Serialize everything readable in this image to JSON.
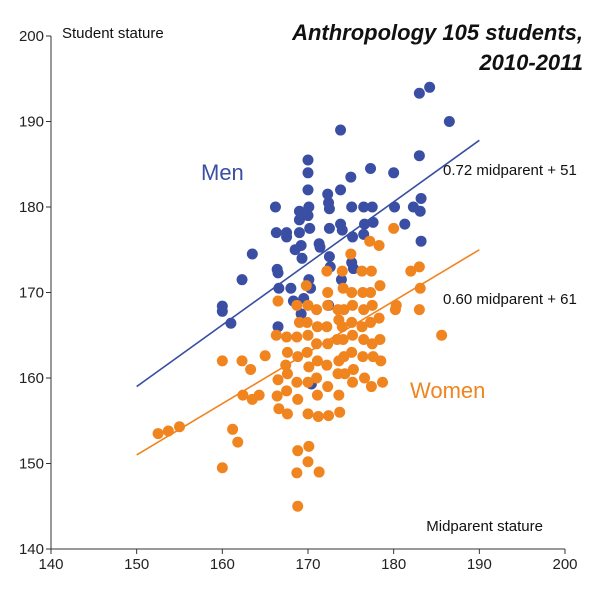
{
  "chart_data": {
    "type": "scatter",
    "title_line1": "Anthropology 105 students,",
    "title_line2": "2010-2011",
    "xlabel": "Midparent stature",
    "ylabel": "Student stature",
    "xlim": [
      140,
      200
    ],
    "ylim": [
      140,
      200
    ],
    "x_ticks": [
      140,
      150,
      160,
      170,
      180,
      190,
      200
    ],
    "y_ticks": [
      140,
      150,
      160,
      170,
      180,
      190,
      200
    ],
    "grid": false,
    "series": [
      {
        "name": "Men",
        "color": "#3a4fa3",
        "fit_label": "0.72 midparent + 51",
        "fit": {
          "slope": 0.72,
          "intercept": 51,
          "x_range": [
            150,
            190
          ]
        },
        "points": [
          [
            160,
            168.4
          ],
          [
            160,
            167.8
          ],
          [
            161,
            166.4
          ],
          [
            162.3,
            171.5
          ],
          [
            163.5,
            174.5
          ],
          [
            166.2,
            180
          ],
          [
            166.3,
            177
          ],
          [
            166.4,
            172.7
          ],
          [
            166.5,
            172.3
          ],
          [
            166.6,
            170.5
          ],
          [
            166.5,
            166
          ],
          [
            167.5,
            177
          ],
          [
            167.5,
            176.5
          ],
          [
            168,
            170.5
          ],
          [
            168.3,
            169
          ],
          [
            168.5,
            175
          ],
          [
            169,
            179.5
          ],
          [
            169,
            178.5
          ],
          [
            169,
            177
          ],
          [
            169.2,
            175.5
          ],
          [
            169.5,
            169.3
          ],
          [
            169.2,
            167.5
          ],
          [
            169.3,
            174
          ],
          [
            170,
            185.5
          ],
          [
            170,
            184
          ],
          [
            170,
            182
          ],
          [
            170.1,
            180
          ],
          [
            170,
            179
          ],
          [
            170.2,
            177.5
          ],
          [
            170.1,
            171.5
          ],
          [
            170.3,
            170.5
          ],
          [
            170.4,
            159.3
          ],
          [
            171.3,
            175.7
          ],
          [
            171.4,
            175.3
          ],
          [
            172.3,
            181.5
          ],
          [
            172.4,
            180.5
          ],
          [
            172.5,
            179.8
          ],
          [
            172.5,
            177.5
          ],
          [
            172.5,
            174.2
          ],
          [
            172.6,
            173
          ],
          [
            172.4,
            168.5
          ],
          [
            173.8,
            189
          ],
          [
            173.8,
            182
          ],
          [
            173.8,
            178
          ],
          [
            174,
            177.3
          ],
          [
            173.9,
            171.5
          ],
          [
            175,
            183.5
          ],
          [
            175.1,
            180
          ],
          [
            175.2,
            176.5
          ],
          [
            175.1,
            173.5
          ],
          [
            175.3,
            172.8
          ],
          [
            176.5,
            180
          ],
          [
            176.6,
            178
          ],
          [
            176.5,
            176.8
          ],
          [
            177.3,
            184.5
          ],
          [
            177.5,
            180
          ],
          [
            177.6,
            178.2
          ],
          [
            180,
            184
          ],
          [
            180.1,
            180
          ],
          [
            181.3,
            178
          ],
          [
            182.3,
            180
          ],
          [
            183,
            186
          ],
          [
            183.2,
            181
          ],
          [
            183.1,
            179.5
          ],
          [
            183.2,
            176
          ],
          [
            183,
            193.3
          ],
          [
            184.2,
            194
          ],
          [
            186.5,
            190
          ]
        ]
      },
      {
        "name": "Women",
        "color": "#f0841f",
        "fit_label": "0.60 midparent + 61",
        "fit": {
          "slope": 0.6,
          "intercept": 61,
          "x_range": [
            150,
            190
          ]
        },
        "points": [
          [
            152.5,
            153.5
          ],
          [
            153.7,
            153.8
          ],
          [
            155,
            154.3
          ],
          [
            160,
            162
          ],
          [
            160,
            149.5
          ],
          [
            161.2,
            154
          ],
          [
            161.8,
            152.5
          ],
          [
            162.3,
            162
          ],
          [
            162.4,
            158
          ],
          [
            163.3,
            161
          ],
          [
            163.5,
            157.5
          ],
          [
            164.3,
            158
          ],
          [
            165,
            162.6
          ],
          [
            166.5,
            169
          ],
          [
            166.3,
            165
          ],
          [
            166.5,
            159.8
          ],
          [
            166.4,
            157.9
          ],
          [
            166.6,
            156.4
          ],
          [
            167.5,
            164.8
          ],
          [
            167.6,
            163
          ],
          [
            167.4,
            161.5
          ],
          [
            167.6,
            160.5
          ],
          [
            167.5,
            158.5
          ],
          [
            167.6,
            155.8
          ],
          [
            168.7,
            168.5
          ],
          [
            169,
            166.5
          ],
          [
            168.7,
            164.8
          ],
          [
            168.8,
            162.5
          ],
          [
            168.7,
            159.5
          ],
          [
            168.8,
            157.5
          ],
          [
            168.8,
            151.5
          ],
          [
            168.7,
            148.9
          ],
          [
            168.8,
            145
          ],
          [
            169.8,
            170.8
          ],
          [
            170,
            168.5
          ],
          [
            169.9,
            166.5
          ],
          [
            170,
            165
          ],
          [
            169.9,
            163
          ],
          [
            170.1,
            161.3
          ],
          [
            170,
            159.5
          ],
          [
            170,
            155.8
          ],
          [
            170.1,
            152
          ],
          [
            170,
            150.2
          ],
          [
            171,
            168
          ],
          [
            171.1,
            166
          ],
          [
            171,
            164
          ],
          [
            171.1,
            162
          ],
          [
            171,
            160
          ],
          [
            171.1,
            158
          ],
          [
            171.2,
            155.5
          ],
          [
            171.3,
            149
          ],
          [
            172.2,
            172.5
          ],
          [
            172.3,
            170
          ],
          [
            172.3,
            168.5
          ],
          [
            172.2,
            166
          ],
          [
            172.3,
            164
          ],
          [
            172.2,
            161.5
          ],
          [
            172.3,
            159
          ],
          [
            172.4,
            155.6
          ],
          [
            173.5,
            168
          ],
          [
            173.6,
            166.8
          ],
          [
            173.4,
            164.5
          ],
          [
            173.6,
            162
          ],
          [
            173.5,
            160.5
          ],
          [
            173.6,
            158
          ],
          [
            173.7,
            156
          ],
          [
            174,
            172.5
          ],
          [
            174.1,
            170.5
          ],
          [
            174.2,
            168
          ],
          [
            174,
            166
          ],
          [
            174.1,
            164.5
          ],
          [
            174.2,
            162.5
          ],
          [
            174.3,
            160.5
          ],
          [
            175,
            174.5
          ],
          [
            175.1,
            170
          ],
          [
            175.2,
            168.5
          ],
          [
            175.1,
            166.5
          ],
          [
            175.2,
            165
          ],
          [
            175.1,
            163
          ],
          [
            175.3,
            161
          ],
          [
            175.2,
            159.5
          ],
          [
            176.3,
            172.5
          ],
          [
            176.4,
            170
          ],
          [
            176.5,
            168
          ],
          [
            176.3,
            166
          ],
          [
            176.5,
            164.5
          ],
          [
            176.4,
            162.5
          ],
          [
            176.6,
            160
          ],
          [
            177.2,
            176
          ],
          [
            177.4,
            172.5
          ],
          [
            177.3,
            170
          ],
          [
            177.5,
            168.5
          ],
          [
            177.3,
            166.5
          ],
          [
            177.5,
            164
          ],
          [
            177.6,
            162.5
          ],
          [
            177.4,
            159
          ],
          [
            178.3,
            175.5
          ],
          [
            178.4,
            170.8
          ],
          [
            178.3,
            167
          ],
          [
            178.4,
            164.5
          ],
          [
            178.5,
            162
          ],
          [
            178.7,
            159.5
          ],
          [
            180,
            177.5
          ],
          [
            180.3,
            168.5
          ],
          [
            180.2,
            168
          ],
          [
            182,
            172.5
          ],
          [
            183,
            173
          ],
          [
            183.1,
            170.5
          ],
          [
            183,
            168
          ],
          [
            185.6,
            165
          ]
        ]
      }
    ],
    "annotations": [
      {
        "text": "Men",
        "series": 0
      },
      {
        "text": "Women",
        "series": 1
      }
    ]
  }
}
